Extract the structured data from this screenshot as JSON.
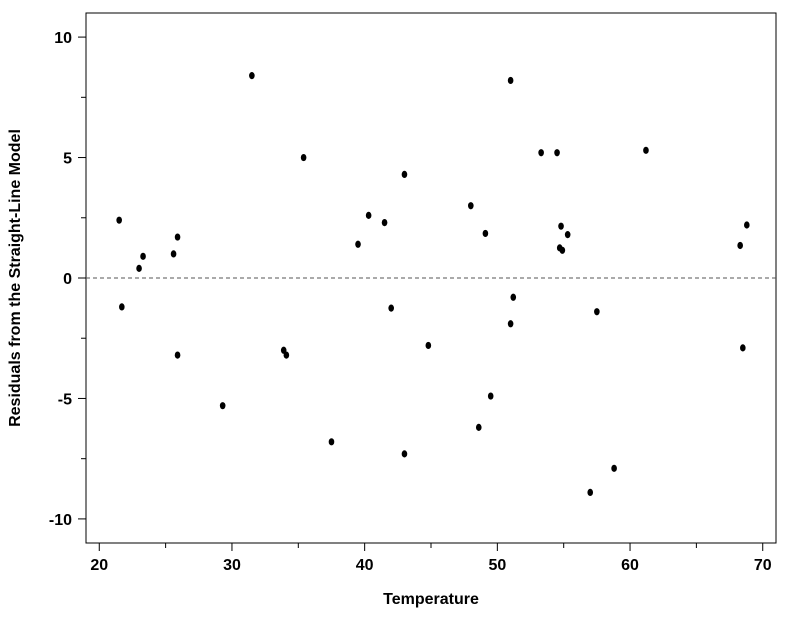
{
  "chart_data": {
    "type": "scatter",
    "title": "",
    "xlabel": "Temperature",
    "ylabel": "Residuals from the Straight-Line Model",
    "xlim": [
      19,
      71
    ],
    "ylim": [
      -11,
      11
    ],
    "x_ticks": [
      20,
      30,
      40,
      50,
      60,
      70
    ],
    "x_minor_ticks": [
      25,
      35,
      45,
      55,
      65
    ],
    "y_ticks": [
      -10,
      -5,
      0,
      5,
      10
    ],
    "y_minor_ticks": [
      -7.5,
      -2.5,
      2.5,
      7.5
    ],
    "x_tick_labels": [
      "20",
      "30",
      "40",
      "50",
      "60",
      "70"
    ],
    "y_tick_labels": [
      "-10",
      "-5",
      "0",
      "5",
      "10"
    ],
    "reference_line": {
      "y": 0,
      "style": "dashed"
    },
    "grid": false,
    "point_color": "#000000",
    "points": [
      {
        "x": 21.5,
        "y": 2.4
      },
      {
        "x": 21.7,
        "y": -1.2
      },
      {
        "x": 23.0,
        "y": 0.4
      },
      {
        "x": 23.3,
        "y": 0.9
      },
      {
        "x": 25.6,
        "y": 1.0
      },
      {
        "x": 25.9,
        "y": 1.7
      },
      {
        "x": 25.9,
        "y": -3.2
      },
      {
        "x": 29.3,
        "y": -5.3
      },
      {
        "x": 31.5,
        "y": 8.4
      },
      {
        "x": 33.9,
        "y": -3.0
      },
      {
        "x": 34.1,
        "y": -3.2
      },
      {
        "x": 35.4,
        "y": 5.0
      },
      {
        "x": 37.5,
        "y": -6.8
      },
      {
        "x": 39.5,
        "y": 1.4
      },
      {
        "x": 40.3,
        "y": 2.6
      },
      {
        "x": 41.5,
        "y": 2.3
      },
      {
        "x": 42.0,
        "y": -1.25
      },
      {
        "x": 43.0,
        "y": 4.3
      },
      {
        "x": 43.0,
        "y": -7.3
      },
      {
        "x": 44.8,
        "y": -2.8
      },
      {
        "x": 48.0,
        "y": 3.0
      },
      {
        "x": 48.6,
        "y": -6.2
      },
      {
        "x": 49.1,
        "y": 1.85
      },
      {
        "x": 49.5,
        "y": -4.9
      },
      {
        "x": 51.0,
        "y": 8.2
      },
      {
        "x": 51.0,
        "y": -1.9
      },
      {
        "x": 51.2,
        "y": -0.8
      },
      {
        "x": 53.3,
        "y": 5.2
      },
      {
        "x": 54.5,
        "y": 5.2
      },
      {
        "x": 54.8,
        "y": 2.15
      },
      {
        "x": 54.7,
        "y": 1.25
      },
      {
        "x": 54.9,
        "y": 1.15
      },
      {
        "x": 55.3,
        "y": 1.8
      },
      {
        "x": 57.0,
        "y": -8.9
      },
      {
        "x": 57.5,
        "y": -1.4
      },
      {
        "x": 58.8,
        "y": -7.9
      },
      {
        "x": 61.2,
        "y": 5.3
      },
      {
        "x": 68.3,
        "y": 1.35
      },
      {
        "x": 68.5,
        "y": -2.9
      },
      {
        "x": 68.8,
        "y": 2.2
      }
    ]
  }
}
